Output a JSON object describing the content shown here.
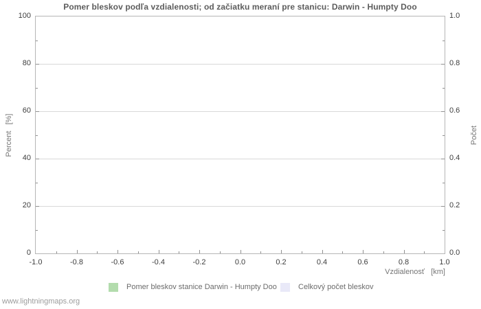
{
  "watermark": "www.lightningmaps.org",
  "chart_data": {
    "type": "bar",
    "title": "Pomer bleskov podľa vzdialenosti; od začiatku meraní pre stanicu: Darwin - Humpty Doo",
    "xlabel": "Vzdialenosť   [km]",
    "ylabel_left": "Percent   [%]",
    "ylabel_right": "Počet",
    "xlim": [
      -1.0,
      1.0
    ],
    "ylim_left": [
      0,
      100
    ],
    "ylim_right": [
      0.0,
      1.0
    ],
    "x_tick_values": [
      -1.0,
      -0.8,
      -0.6,
      -0.4,
      -0.2,
      0.0,
      0.2,
      0.4,
      0.6,
      0.8,
      1.0
    ],
    "x_tick_labels": [
      "-1.0",
      "-0.8",
      "-0.6",
      "-0.4",
      "-0.2",
      "0.0",
      "0.2",
      "0.4",
      "0.6",
      "0.8",
      "1.0"
    ],
    "x_minor_step": 0.1,
    "y_tick_values": [
      0,
      20,
      40,
      60,
      80,
      100
    ],
    "y_tick_labels_left": [
      "0",
      "20",
      "40",
      "60",
      "80",
      "100"
    ],
    "y_tick_labels_right": [
      "0.0",
      "0.2",
      "0.4",
      "0.6",
      "0.8",
      "1.0"
    ],
    "y_minor_step": 10,
    "grid": "horizontal-major-only",
    "legend_position": "bottom-center",
    "series": [
      {
        "name": "Pomer bleskov stanice Darwin - Humpty Doo",
        "color": "#b3dcad",
        "values": []
      },
      {
        "name": "Celkový počet bleskov",
        "color": "#e9e9f8",
        "values": []
      }
    ]
  }
}
